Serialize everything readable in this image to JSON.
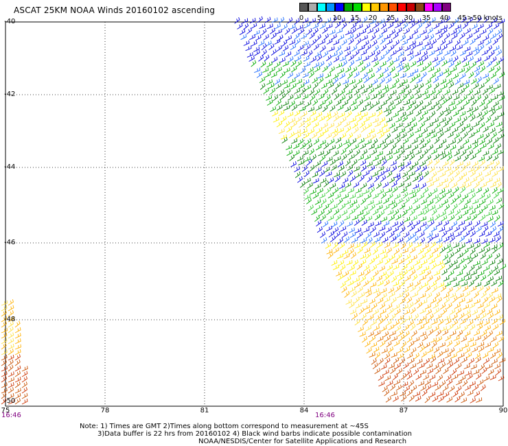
{
  "title": "ASCAT 25KM NOAA Winds 20160102 ascending",
  "legend": {
    "colors": [
      "#555555",
      "#aaaaaa",
      "#00ffff",
      "#0096ff",
      "#0000ff",
      "#00aa00",
      "#00dd00",
      "#ffff00",
      "#ffc800",
      "#ff9600",
      "#ff5000",
      "#ff0000",
      "#c80000",
      "#8b4513",
      "#ff00ff",
      "#aa00ff",
      "#800080"
    ],
    "labels": [
      "0",
      "5",
      "10",
      "15",
      "20",
      "25",
      "30",
      "35",
      "40",
      "45",
      ">50 knots"
    ]
  },
  "map": {
    "lat_labels": [
      "-40",
      "-42",
      "-44",
      "-46",
      "-48",
      "-50"
    ],
    "lon_labels": [
      "75",
      "78",
      "81",
      "84",
      "87",
      "90"
    ],
    "time_labels": [
      "16:46",
      "16:46"
    ]
  },
  "notes": {
    "line1": "Note: 1) Times are GMT 2)Times along bottom correspond to measurement at ~45S",
    "line2": "3)Data buffer is 22 hrs from 20160102 4) Black wind barbs indicate possible contamination",
    "line3": "NOAA/NESDIS/Center for Satellite Applications and Research"
  }
}
